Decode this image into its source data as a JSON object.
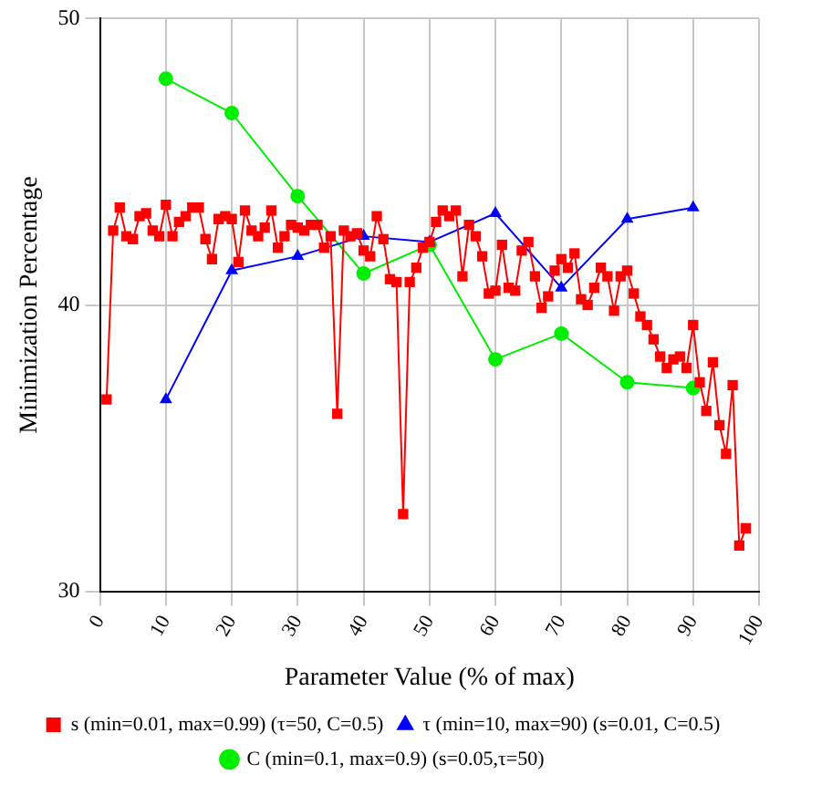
{
  "chart_data": {
    "type": "line",
    "xlabel": "Parameter Value (% of max)",
    "ylabel": "Minimization Percentage",
    "xlim": [
      0,
      100
    ],
    "xticks": [
      0,
      10,
      20,
      30,
      40,
      50,
      60,
      70,
      80,
      90,
      100
    ],
    "ylim": [
      30,
      50
    ],
    "yticks": [
      30,
      40,
      50
    ],
    "grid": true,
    "legend": "bottom",
    "series": [
      {
        "name": "s (min=0.01, max=0.99) (τ=50, C=0.5)",
        "color": "#ff0000",
        "marker": "square",
        "x": [
          1,
          2,
          3,
          4,
          5,
          6,
          7,
          8,
          9,
          10,
          11,
          12,
          13,
          14,
          15,
          16,
          17,
          18,
          19,
          20,
          21,
          22,
          23,
          24,
          25,
          26,
          27,
          28,
          29,
          30,
          31,
          32,
          33,
          34,
          35,
          36,
          37,
          38,
          39,
          40,
          41,
          42,
          43,
          44,
          45,
          46,
          47,
          48,
          49,
          50,
          51,
          52,
          53,
          54,
          55,
          56,
          57,
          58,
          59,
          60,
          61,
          62,
          63,
          64,
          65,
          66,
          67,
          68,
          69,
          70,
          71,
          72,
          73,
          74,
          75,
          76,
          77,
          78,
          79,
          80,
          81,
          82,
          83,
          84,
          85,
          86,
          87,
          88,
          89,
          90,
          91,
          92,
          93,
          94,
          95,
          96,
          97,
          98
        ],
        "values": [
          36.7,
          42.6,
          43.4,
          42.4,
          42.3,
          43.1,
          43.2,
          42.6,
          42.4,
          43.5,
          42.4,
          42.9,
          43.1,
          43.4,
          43.4,
          42.3,
          41.6,
          43,
          43.1,
          43,
          41.5,
          43.3,
          42.6,
          42.4,
          42.7,
          43.3,
          42,
          42.4,
          42.8,
          42.7,
          42.6,
          42.8,
          42.8,
          42,
          42.4,
          36.2,
          42.6,
          42.4,
          42.5,
          41.9,
          41.7,
          43.1,
          42.3,
          40.9,
          40.8,
          32.7,
          40.8,
          41.3,
          42,
          42.2,
          42.9,
          43.3,
          43.1,
          43.3,
          41,
          42.8,
          42.4,
          41.7,
          40.4,
          40.5,
          42.1,
          40.6,
          40.5,
          41.9,
          42.2,
          41,
          39.9,
          40.3,
          41.2,
          41.6,
          41.3,
          41.8,
          40.2,
          40,
          40.6,
          41.3,
          41,
          39.8,
          41,
          41.2,
          40.4,
          39.6,
          39.3,
          38.8,
          38.2,
          37.8,
          38.1,
          38.2,
          37.8,
          39.3,
          37.3,
          36.3,
          38,
          35.8,
          34.8,
          37.2,
          31.6,
          32.2
        ]
      },
      {
        "name": "τ (min=10, max=90) (s=0.01, C=0.5)",
        "color": "#0000ff",
        "marker": "triangle",
        "x": [
          10,
          20,
          30,
          40,
          50,
          60,
          70,
          80,
          90
        ],
        "values": [
          36.7,
          41.2,
          41.7,
          42.4,
          42.2,
          43.2,
          40.6,
          43,
          43.4
        ]
      },
      {
        "name": "C (min=0.1, max=0.9) (s=0.05,τ=50)",
        "color": "#00ee00",
        "marker": "circle",
        "x": [
          10,
          20,
          30,
          40,
          50,
          60,
          70,
          80,
          90
        ],
        "values": [
          47.9,
          46.7,
          43.8,
          41.1,
          42.1,
          38.1,
          39,
          37.3,
          37.1
        ]
      }
    ]
  }
}
